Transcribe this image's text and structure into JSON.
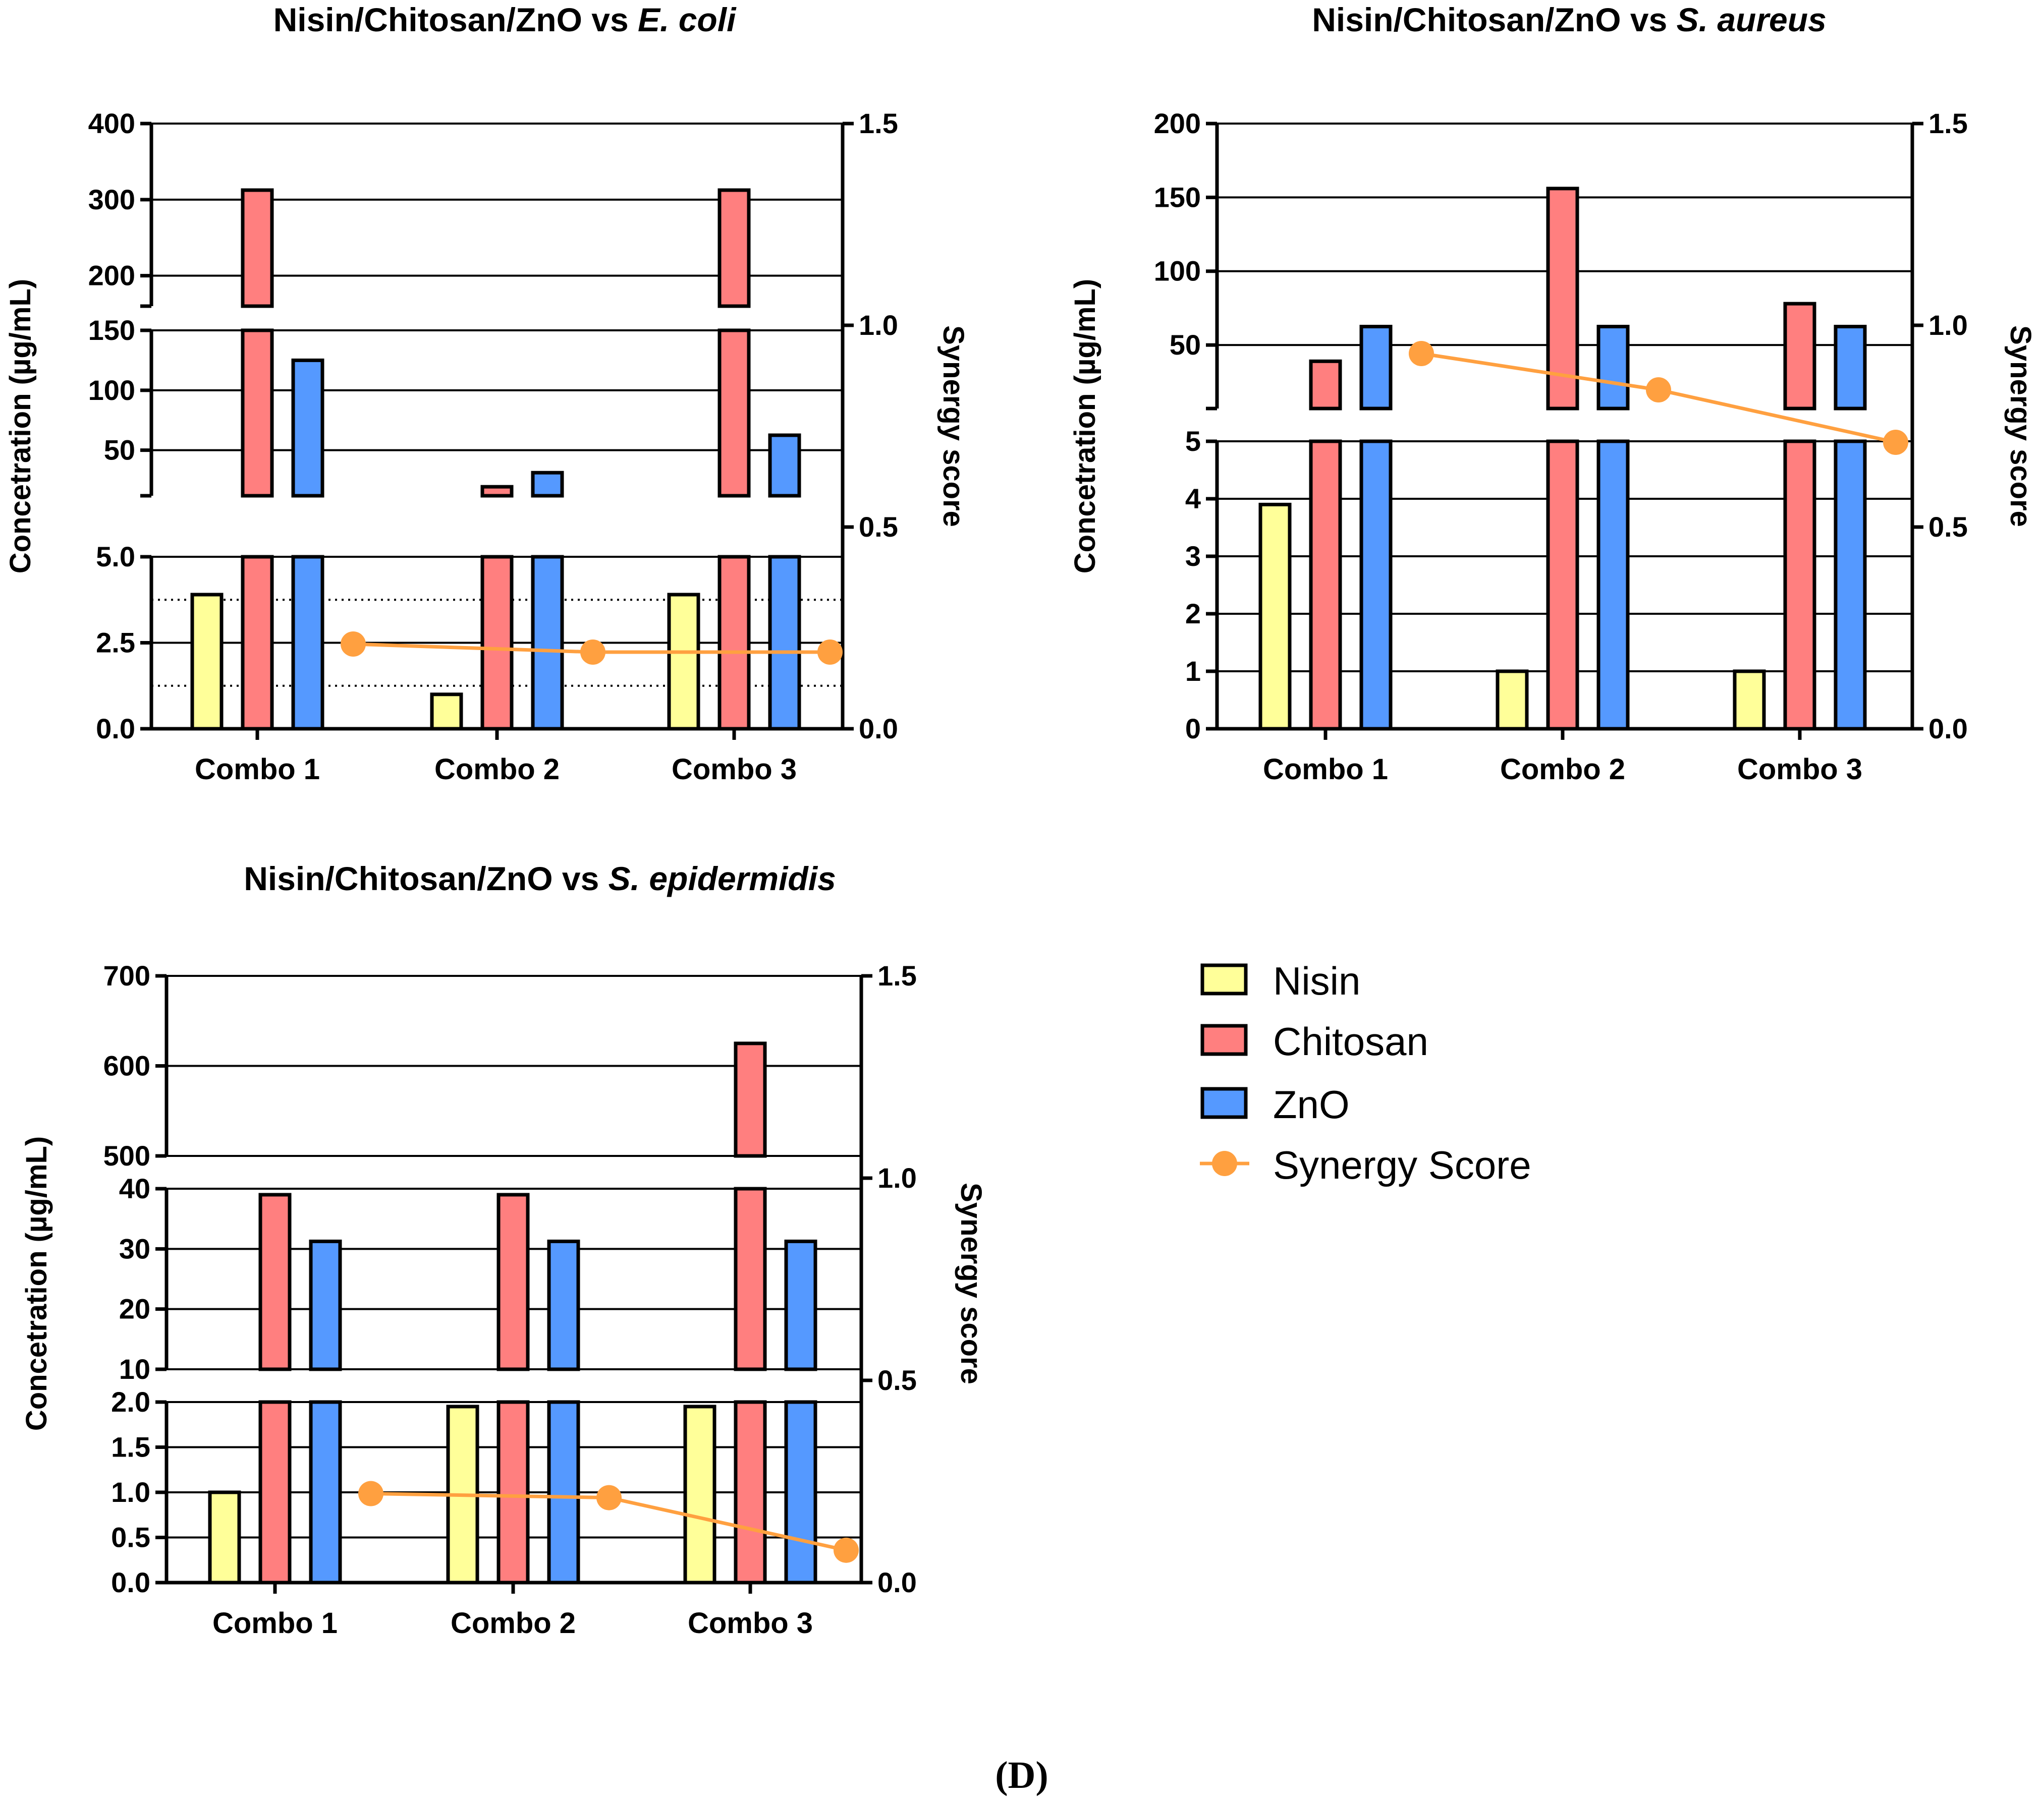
{
  "figure_label": "(D)",
  "colors": {
    "nisin": "#ffff99",
    "chitosan": "#ff7f7f",
    "zno": "#5599ff",
    "synergy": "#ffa040",
    "axis": "#000000"
  },
  "legend": {
    "items": [
      {
        "key": "nisin",
        "label": "Nisin",
        "kind": "box"
      },
      {
        "key": "chitosan",
        "label": "Chitosan",
        "kind": "box"
      },
      {
        "key": "zno",
        "label": "ZnO",
        "kind": "box"
      },
      {
        "key": "synergy",
        "label": "Synergy Score",
        "kind": "line-marker"
      }
    ]
  },
  "chart_data": [
    {
      "type": "bar",
      "title_main": "Nisin/Chitosan/ZnO vs",
      "title_organism": "E. coli",
      "ylabel": "Concetration (µg/mL)",
      "y2label": "Synergy score",
      "categories": [
        "Combo 1",
        "Combo 2",
        "Combo 3"
      ],
      "series": [
        {
          "name": "Nisin",
          "key": "nisin",
          "values": [
            3.9,
            1.0,
            3.9
          ]
        },
        {
          "name": "Chitosan",
          "key": "chitosan",
          "values": [
            312.5,
            19.5,
            312.5
          ]
        },
        {
          "name": "ZnO",
          "key": "zno",
          "values": [
            125,
            31.25,
            62.5
          ]
        }
      ],
      "line_series": {
        "name": "Synergy Score",
        "key": "synergy",
        "values": [
          0.21,
          0.19,
          0.19
        ]
      },
      "y_segments": [
        {
          "range": [
            0,
            5
          ],
          "ticks": [
            0.0,
            2.5,
            5.0
          ],
          "tick_labels": [
            "0.0",
            "2.5",
            "5.0"
          ]
        },
        {
          "range": [
            12,
            150
          ],
          "ticks": [
            50,
            100,
            150
          ],
          "tick_labels": [
            "50",
            "100",
            "150"
          ]
        },
        {
          "range": [
            160,
            400
          ],
          "ticks": [
            200,
            300,
            400
          ],
          "tick_labels": [
            "200",
            "300",
            "400"
          ]
        }
      ],
      "y2_range": [
        0,
        1.5
      ],
      "y2_ticks": [
        "0.0",
        "0.5",
        "1.0",
        "1.5"
      ],
      "reference_lines": [
        1.25,
        3.75
      ]
    },
    {
      "type": "bar",
      "title_main": "Nisin/Chitosan/ZnO vs",
      "title_organism": "S. aureus",
      "ylabel": "Concetration (µg/mL)",
      "y2label": "Synergy score",
      "categories": [
        "Combo 1",
        "Combo 2",
        "Combo 3"
      ],
      "series": [
        {
          "name": "Nisin",
          "key": "nisin",
          "values": [
            3.9,
            1.0,
            1.0
          ]
        },
        {
          "name": "Chitosan",
          "key": "chitosan",
          "values": [
            39,
            156,
            78
          ]
        },
        {
          "name": "ZnO",
          "key": "zno",
          "values": [
            62.5,
            62.5,
            62.5
          ]
        }
      ],
      "line_series": {
        "name": "Synergy Score",
        "key": "synergy",
        "values": [
          0.93,
          0.84,
          0.71
        ]
      },
      "y_segments": [
        {
          "range": [
            0,
            5
          ],
          "ticks": [
            0,
            1,
            2,
            3,
            4,
            5
          ],
          "tick_labels": [
            "0",
            "1",
            "2",
            "3",
            "4",
            "5"
          ]
        },
        {
          "range": [
            7,
            200
          ],
          "ticks": [
            50,
            100,
            150,
            200
          ],
          "tick_labels": [
            "50",
            "100",
            "150",
            "200"
          ]
        }
      ],
      "y2_range": [
        0,
        1.5
      ],
      "y2_ticks": [
        "0.0",
        "0.5",
        "1.0",
        "1.5"
      ],
      "reference_lines": []
    },
    {
      "type": "bar",
      "title_main": "Nisin/Chitosan/ZnO vs",
      "title_organism": "S. epidermidis",
      "ylabel": "Concetration (µg/mL)",
      "y2label": "Synergy score",
      "categories": [
        "Combo 1",
        "Combo 2",
        "Combo 3"
      ],
      "series": [
        {
          "name": "Nisin",
          "key": "nisin",
          "values": [
            1.0,
            1.95,
            1.95
          ]
        },
        {
          "name": "Chitosan",
          "key": "chitosan",
          "values": [
            39,
            39,
            625
          ]
        },
        {
          "name": "ZnO",
          "key": "zno",
          "values": [
            31.25,
            31.25,
            31.25
          ]
        }
      ],
      "line_series": {
        "name": "Synergy Score",
        "key": "synergy",
        "values": [
          0.22,
          0.21,
          0.08
        ]
      },
      "y_segments": [
        {
          "range": [
            0,
            2
          ],
          "ticks": [
            0.0,
            0.5,
            1.0,
            1.5,
            2.0
          ],
          "tick_labels": [
            "0.0",
            "0.5",
            "1.0",
            "1.5",
            "2.0"
          ]
        },
        {
          "range": [
            10,
            40
          ],
          "ticks": [
            10,
            20,
            30,
            40
          ],
          "tick_labels": [
            "10",
            "20",
            "30",
            "40"
          ]
        },
        {
          "range": [
            500,
            700
          ],
          "ticks": [
            500,
            600,
            700
          ],
          "tick_labels": [
            "500",
            "600",
            "700"
          ]
        }
      ],
      "y2_range": [
        0,
        1.5
      ],
      "y2_ticks": [
        "0.0",
        "0.5",
        "1.0",
        "1.5"
      ],
      "reference_lines": []
    }
  ]
}
